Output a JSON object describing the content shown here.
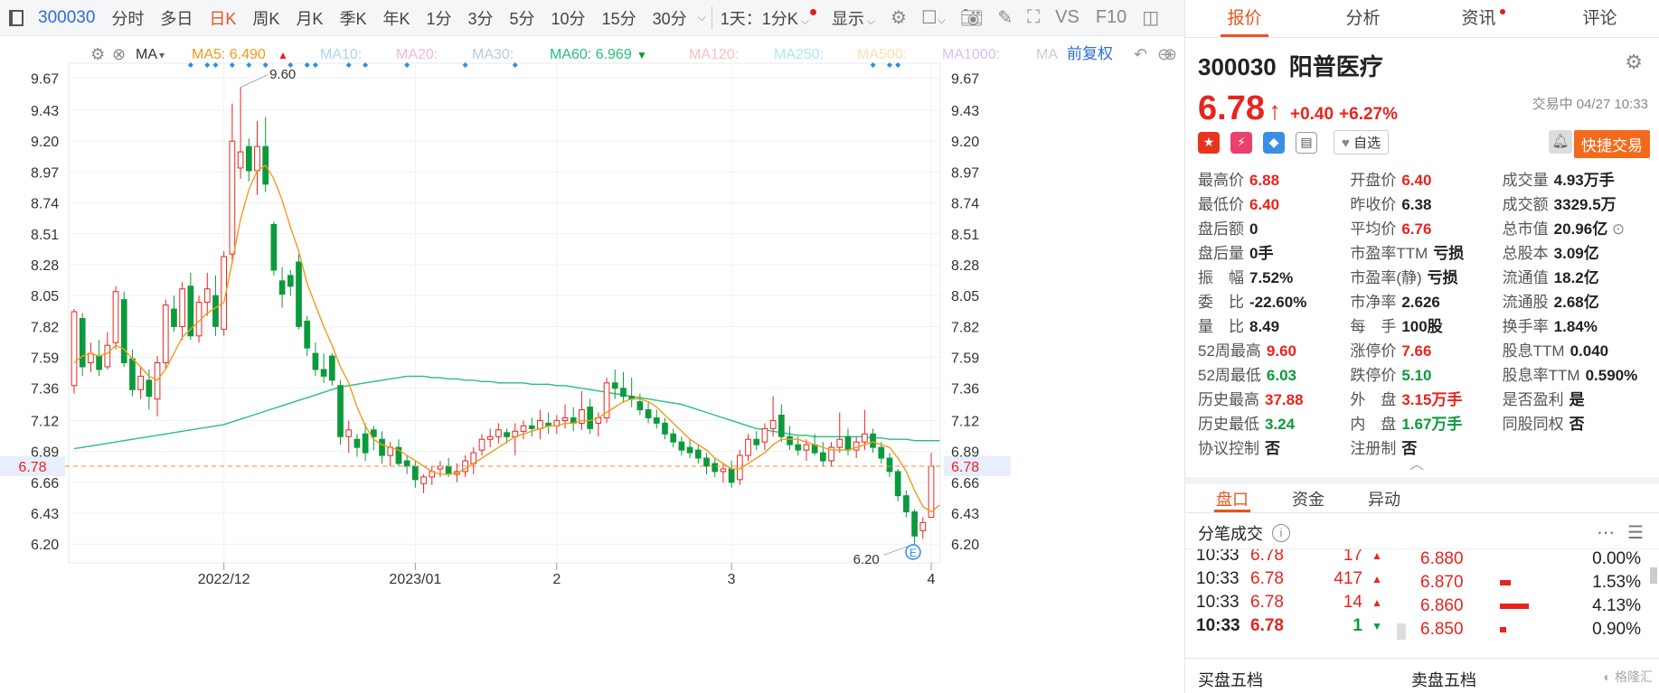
{
  "toolbar": {
    "code": "300030",
    "periods": [
      "分时",
      "多日",
      "日K",
      "周K",
      "月K",
      "季K",
      "年K",
      "1分",
      "3分",
      "5分",
      "10分",
      "15分",
      "30分"
    ],
    "active_period": "日K",
    "mode_label": "1天：1分K",
    "display_label": "显示",
    "vs_label": "VS",
    "f10_label": "F10"
  },
  "indicator_bar": {
    "ma_label": "MA",
    "ma5": "MA5: 6.490",
    "ma10": "MA10:",
    "ma20": "MA20:",
    "ma30": "MA30:",
    "ma60": "MA60: 6.969",
    "ma120": "MA120:",
    "ma250": "MA250:",
    "ma500": "MA500:",
    "ma1000": "MA1000:",
    "ma_tail": "MA",
    "adjust_label": "前复权"
  },
  "colors": {
    "up": "#e8241e",
    "down": "#0b9a3c",
    "ma5": "#f39a1b",
    "ma60": "#27c07a",
    "accent": "#e8541e"
  },
  "chart_data": {
    "type": "candlestick",
    "ylim": [
      6.06,
      9.78
    ],
    "y_ticks": [
      "9.67",
      "9.43",
      "9.20",
      "8.97",
      "8.74",
      "8.51",
      "8.28",
      "8.05",
      "7.82",
      "7.59",
      "7.36",
      "7.12",
      "6.89",
      "6.66",
      "6.43",
      "6.20"
    ],
    "x_labels": [
      {
        "label": "2022/12",
        "index": 18
      },
      {
        "label": "2023/01",
        "index": 41
      },
      {
        "label": "2",
        "index": 58
      },
      {
        "label": "3",
        "index": 79
      },
      {
        "label": "4",
        "index": 103
      }
    ],
    "current_price": "6.78",
    "max_label": "9.60",
    "min_label": "6.20",
    "candles": [
      [
        7.38,
        7.95,
        7.32,
        7.93
      ],
      [
        7.88,
        7.92,
        7.45,
        7.52
      ],
      [
        7.55,
        7.7,
        7.48,
        7.62
      ],
      [
        7.6,
        7.72,
        7.45,
        7.5
      ],
      [
        7.52,
        7.78,
        7.5,
        7.68
      ],
      [
        7.7,
        8.12,
        7.65,
        8.08
      ],
      [
        8.02,
        8.08,
        7.52,
        7.55
      ],
      [
        7.58,
        7.65,
        7.3,
        7.35
      ],
      [
        7.35,
        7.52,
        7.28,
        7.45
      ],
      [
        7.42,
        7.5,
        7.2,
        7.3
      ],
      [
        7.28,
        7.6,
        7.15,
        7.55
      ],
      [
        7.55,
        8.02,
        7.5,
        7.98
      ],
      [
        7.95,
        8.05,
        7.78,
        7.82
      ],
      [
        7.82,
        8.15,
        7.72,
        8.1
      ],
      [
        8.12,
        8.22,
        7.72,
        7.75
      ],
      [
        7.75,
        8.05,
        7.7,
        8.0
      ],
      [
        8.0,
        8.22,
        7.9,
        8.1
      ],
      [
        8.05,
        8.2,
        7.75,
        7.82
      ],
      [
        7.8,
        8.38,
        7.75,
        8.34
      ],
      [
        8.36,
        9.48,
        8.3,
        9.2
      ],
      [
        9.0,
        9.6,
        8.92,
        9.12
      ],
      [
        9.16,
        9.22,
        8.9,
        8.98
      ],
      [
        8.98,
        9.35,
        8.8,
        9.16
      ],
      [
        9.16,
        9.38,
        8.82,
        8.88
      ],
      [
        8.58,
        8.6,
        8.2,
        8.24
      ],
      [
        8.16,
        8.26,
        7.96,
        8.06
      ],
      [
        8.2,
        8.24,
        8.05,
        8.12
      ],
      [
        8.3,
        8.36,
        7.8,
        7.82
      ],
      [
        7.86,
        7.9,
        7.6,
        7.66
      ],
      [
        7.62,
        7.7,
        7.45,
        7.5
      ],
      [
        7.5,
        7.62,
        7.4,
        7.45
      ],
      [
        7.6,
        7.62,
        7.38,
        7.42
      ],
      [
        7.38,
        7.42,
        6.94,
        7.0
      ],
      [
        7.0,
        7.12,
        6.88,
        7.05
      ],
      [
        6.98,
        7.02,
        6.85,
        6.92
      ],
      [
        7.02,
        7.1,
        6.82,
        6.88
      ],
      [
        7.05,
        7.08,
        6.9,
        7.0
      ],
      [
        6.98,
        7.04,
        6.8,
        6.86
      ],
      [
        6.86,
        6.96,
        6.78,
        6.92
      ],
      [
        6.92,
        6.98,
        6.78,
        6.8
      ],
      [
        6.82,
        6.86,
        6.72,
        6.78
      ],
      [
        6.78,
        6.82,
        6.62,
        6.68
      ],
      [
        6.65,
        6.72,
        6.58,
        6.7
      ],
      [
        6.7,
        6.78,
        6.64,
        6.74
      ],
      [
        6.76,
        6.82,
        6.7,
        6.78
      ],
      [
        6.78,
        6.84,
        6.7,
        6.72
      ],
      [
        6.72,
        6.8,
        6.66,
        6.74
      ],
      [
        6.74,
        6.86,
        6.7,
        6.82
      ],
      [
        6.8,
        6.92,
        6.72,
        6.88
      ],
      [
        6.9,
        7.02,
        6.86,
        6.98
      ],
      [
        6.98,
        7.06,
        6.92,
        7.0
      ],
      [
        7.0,
        7.1,
        6.95,
        7.05
      ],
      [
        7.03,
        7.06,
        6.95,
        7.0
      ],
      [
        7.0,
        7.1,
        6.86,
        7.04
      ],
      [
        7.04,
        7.12,
        6.98,
        7.08
      ],
      [
        7.08,
        7.14,
        7.0,
        7.06
      ],
      [
        7.06,
        7.2,
        6.98,
        7.12
      ],
      [
        7.1,
        7.18,
        7.02,
        7.08
      ],
      [
        7.08,
        7.16,
        7.02,
        7.12
      ],
      [
        7.12,
        7.24,
        7.06,
        7.14
      ],
      [
        7.14,
        7.22,
        7.04,
        7.1
      ],
      [
        7.1,
        7.34,
        7.05,
        7.2
      ],
      [
        7.22,
        7.28,
        7.02,
        7.06
      ],
      [
        7.1,
        7.18,
        7.0,
        7.14
      ],
      [
        7.14,
        7.44,
        7.1,
        7.4
      ],
      [
        7.4,
        7.5,
        7.28,
        7.36
      ],
      [
        7.36,
        7.48,
        7.25,
        7.3
      ],
      [
        7.3,
        7.44,
        7.22,
        7.28
      ],
      [
        7.26,
        7.32,
        7.16,
        7.2
      ],
      [
        7.2,
        7.26,
        7.1,
        7.14
      ],
      [
        7.14,
        7.2,
        7.06,
        7.1
      ],
      [
        7.1,
        7.14,
        6.98,
        7.02
      ],
      [
        7.02,
        7.06,
        6.92,
        6.96
      ],
      [
        6.96,
        7.0,
        6.86,
        6.9
      ],
      [
        6.92,
        6.98,
        6.84,
        6.88
      ],
      [
        6.9,
        6.94,
        6.8,
        6.84
      ],
      [
        6.84,
        6.88,
        6.72,
        6.78
      ],
      [
        6.8,
        6.84,
        6.7,
        6.74
      ],
      [
        6.74,
        6.8,
        6.66,
        6.76
      ],
      [
        6.76,
        6.82,
        6.62,
        6.66
      ],
      [
        6.68,
        6.9,
        6.64,
        6.86
      ],
      [
        6.86,
        7.02,
        6.82,
        6.98
      ],
      [
        6.98,
        7.04,
        6.9,
        6.94
      ],
      [
        6.96,
        7.1,
        6.9,
        7.06
      ],
      [
        7.06,
        7.3,
        7.0,
        7.12
      ],
      [
        7.16,
        7.24,
        6.96,
        7.0
      ],
      [
        7.0,
        7.08,
        6.9,
        6.94
      ],
      [
        6.94,
        7.0,
        6.86,
        6.9
      ],
      [
        6.9,
        6.98,
        6.82,
        6.94
      ],
      [
        6.94,
        7.02,
        6.86,
        6.88
      ],
      [
        6.88,
        6.96,
        6.78,
        6.82
      ],
      [
        6.82,
        6.96,
        6.78,
        6.92
      ],
      [
        6.92,
        7.18,
        6.88,
        6.98
      ],
      [
        7.0,
        7.06,
        6.86,
        6.9
      ],
      [
        6.9,
        7.0,
        6.84,
        6.96
      ],
      [
        6.96,
        7.2,
        6.9,
        7.02
      ],
      [
        7.02,
        7.06,
        6.88,
        6.92
      ],
      [
        6.92,
        6.96,
        6.8,
        6.84
      ],
      [
        6.84,
        6.88,
        6.7,
        6.74
      ],
      [
        6.74,
        6.76,
        6.52,
        6.56
      ],
      [
        6.56,
        6.6,
        6.4,
        6.44
      ],
      [
        6.44,
        6.46,
        6.2,
        6.26
      ],
      [
        6.3,
        6.4,
        6.24,
        6.36
      ],
      [
        6.4,
        6.88,
        6.4,
        6.78
      ]
    ],
    "ma5": [
      7.55,
      7.6,
      7.62,
      7.6,
      7.62,
      7.68,
      7.65,
      7.58,
      7.52,
      7.45,
      7.42,
      7.5,
      7.62,
      7.74,
      7.8,
      7.86,
      7.92,
      7.96,
      8.0,
      8.3,
      8.62,
      8.84,
      8.98,
      9.02,
      8.92,
      8.76,
      8.56,
      8.38,
      8.14,
      7.98,
      7.82,
      7.68,
      7.52,
      7.4,
      7.22,
      7.08,
      6.98,
      6.94,
      6.92,
      6.9,
      6.86,
      6.82,
      6.78,
      6.74,
      6.72,
      6.72,
      6.73,
      6.76,
      6.8,
      6.84,
      6.88,
      6.92,
      6.96,
      7.0,
      7.02,
      7.04,
      7.06,
      7.08,
      7.08,
      7.1,
      7.1,
      7.12,
      7.12,
      7.14,
      7.18,
      7.22,
      7.26,
      7.28,
      7.28,
      7.26,
      7.22,
      7.16,
      7.1,
      7.04,
      6.98,
      6.94,
      6.9,
      6.84,
      6.8,
      6.76,
      6.76,
      6.8,
      6.84,
      6.88,
      6.94,
      6.98,
      6.98,
      6.98,
      6.96,
      6.94,
      6.92,
      6.9,
      6.9,
      6.9,
      6.92,
      6.94,
      6.96,
      6.94,
      6.92,
      6.84,
      6.74,
      6.6,
      6.48,
      6.44,
      6.49
    ],
    "ma60": [
      6.91,
      6.92,
      6.93,
      6.94,
      6.95,
      6.96,
      6.97,
      6.98,
      6.99,
      7.0,
      7.01,
      7.02,
      7.03,
      7.04,
      7.05,
      7.06,
      7.07,
      7.08,
      7.09,
      7.11,
      7.13,
      7.15,
      7.17,
      7.19,
      7.21,
      7.23,
      7.25,
      7.27,
      7.29,
      7.31,
      7.33,
      7.35,
      7.37,
      7.38,
      7.39,
      7.4,
      7.41,
      7.42,
      7.43,
      7.44,
      7.45,
      7.45,
      7.45,
      7.44,
      7.44,
      7.43,
      7.43,
      7.42,
      7.42,
      7.41,
      7.41,
      7.4,
      7.4,
      7.4,
      7.4,
      7.39,
      7.39,
      7.39,
      7.38,
      7.38,
      7.37,
      7.36,
      7.35,
      7.34,
      7.33,
      7.32,
      7.31,
      7.3,
      7.29,
      7.28,
      7.27,
      7.26,
      7.25,
      7.24,
      7.22,
      7.2,
      7.18,
      7.16,
      7.14,
      7.12,
      7.1,
      7.08,
      7.06,
      7.05,
      7.04,
      7.03,
      7.02,
      7.01,
      7.01,
      7.0,
      7.0,
      7.0,
      7.0,
      7.0,
      7.0,
      7.0,
      6.99,
      6.99,
      6.98,
      6.98,
      6.98,
      6.97,
      6.97,
      6.97,
      6.97
    ],
    "event_markers": [
      14,
      16,
      17,
      19,
      21,
      23,
      26,
      28,
      29,
      33,
      35,
      40,
      47,
      53,
      96,
      98,
      99
    ]
  },
  "stock": {
    "code": "300030",
    "name": "阳普医疗",
    "price": "6.78",
    "change": "+0.40",
    "change_pct": "+6.27%",
    "status": "交易中 04/27 10:33",
    "watch_label": "自选",
    "fast_trade_label": "快捷交易"
  },
  "right_tabs": [
    "报价",
    "分析",
    "资讯",
    "评论"
  ],
  "stats": [
    [
      {
        "k": "最高价",
        "v": "6.88",
        "c": "red"
      },
      {
        "k": "开盘价",
        "v": "6.40",
        "c": "red"
      },
      {
        "k": "成交量",
        "v": "4.93万手",
        "c": "dark"
      }
    ],
    [
      {
        "k": "最低价",
        "v": "6.40",
        "c": "red"
      },
      {
        "k": "昨收价",
        "v": "6.38",
        "c": "dark"
      },
      {
        "k": "成交额",
        "v": "3329.5万",
        "c": "dark"
      }
    ],
    [
      {
        "k": "盘后额",
        "v": "0",
        "c": "dark"
      },
      {
        "k": "平均价",
        "v": "6.76",
        "c": "red"
      },
      {
        "k": "总市值",
        "v": "20.96亿",
        "c": "dark"
      }
    ],
    [
      {
        "k": "盘后量",
        "v": "0手",
        "c": "dark"
      },
      {
        "k": "市盈率TTM",
        "v": "亏损",
        "c": "dark"
      },
      {
        "k": "总股本",
        "v": "3.09亿",
        "c": "dark"
      }
    ],
    [
      {
        "k": "振　幅",
        "v": "7.52%",
        "c": "dark"
      },
      {
        "k": "市盈率(静)",
        "v": "亏损",
        "c": "dark"
      },
      {
        "k": "流通值",
        "v": "18.2亿",
        "c": "dark"
      }
    ],
    [
      {
        "k": "委　比",
        "v": "-22.60%",
        "c": "dark"
      },
      {
        "k": "市净率",
        "v": "2.626",
        "c": "dark"
      },
      {
        "k": "流通股",
        "v": "2.68亿",
        "c": "dark"
      }
    ],
    [
      {
        "k": "量　比",
        "v": "8.49",
        "c": "dark"
      },
      {
        "k": "每　手",
        "v": "100股",
        "c": "dark"
      },
      {
        "k": "换手率",
        "v": "1.84%",
        "c": "dark"
      }
    ],
    [
      {
        "k": "52周最高",
        "v": "9.60",
        "c": "red"
      },
      {
        "k": "涨停价",
        "v": "7.66",
        "c": "red"
      },
      {
        "k": "股息TTM",
        "v": "0.040",
        "c": "dark"
      }
    ],
    [
      {
        "k": "52周最低",
        "v": "6.03",
        "c": "green"
      },
      {
        "k": "跌停价",
        "v": "5.10",
        "c": "green"
      },
      {
        "k": "股息率TTM",
        "v": "0.590%",
        "c": "dark"
      }
    ],
    [
      {
        "k": "历史最高",
        "v": "37.88",
        "c": "red"
      },
      {
        "k": "外　盘",
        "v": "3.15万手",
        "c": "red"
      },
      {
        "k": "是否盈利",
        "v": "是",
        "c": "dark"
      }
    ],
    [
      {
        "k": "历史最低",
        "v": "3.24",
        "c": "green"
      },
      {
        "k": "内　盘",
        "v": "1.67万手",
        "c": "green"
      },
      {
        "k": "同股同权",
        "v": "否",
        "c": "dark"
      }
    ],
    [
      {
        "k": "协议控制",
        "v": "否",
        "c": "dark"
      },
      {
        "k": "注册制",
        "v": "否",
        "c": "dark"
      },
      {
        "k": "",
        "v": "",
        "c": "dark"
      }
    ]
  ],
  "sub_tabs": [
    "盘口",
    "资金",
    "异动"
  ],
  "ticks_section": {
    "title": "分笔成交",
    "rows": [
      {
        "time": "10:33",
        "price": "6.78",
        "vol": "17",
        "dir": "up"
      },
      {
        "time": "10:33",
        "price": "6.78",
        "vol": "417",
        "dir": "up"
      },
      {
        "time": "10:33",
        "price": "6.78",
        "vol": "14",
        "dir": "up"
      },
      {
        "time": "10:33",
        "price": "6.78",
        "vol": "1",
        "dir": "down"
      }
    ]
  },
  "book": [
    {
      "price": "6.880",
      "pct": "0.00%",
      "ratio": 0.0
    },
    {
      "price": "6.870",
      "pct": "1.53%",
      "ratio": 0.37
    },
    {
      "price": "6.860",
      "pct": "4.13%",
      "ratio": 1.0
    },
    {
      "price": "6.850",
      "pct": "0.90%",
      "ratio": 0.22
    }
  ],
  "bottom": {
    "buy_label": "买盘五档",
    "sell_label": "卖盘五档"
  }
}
